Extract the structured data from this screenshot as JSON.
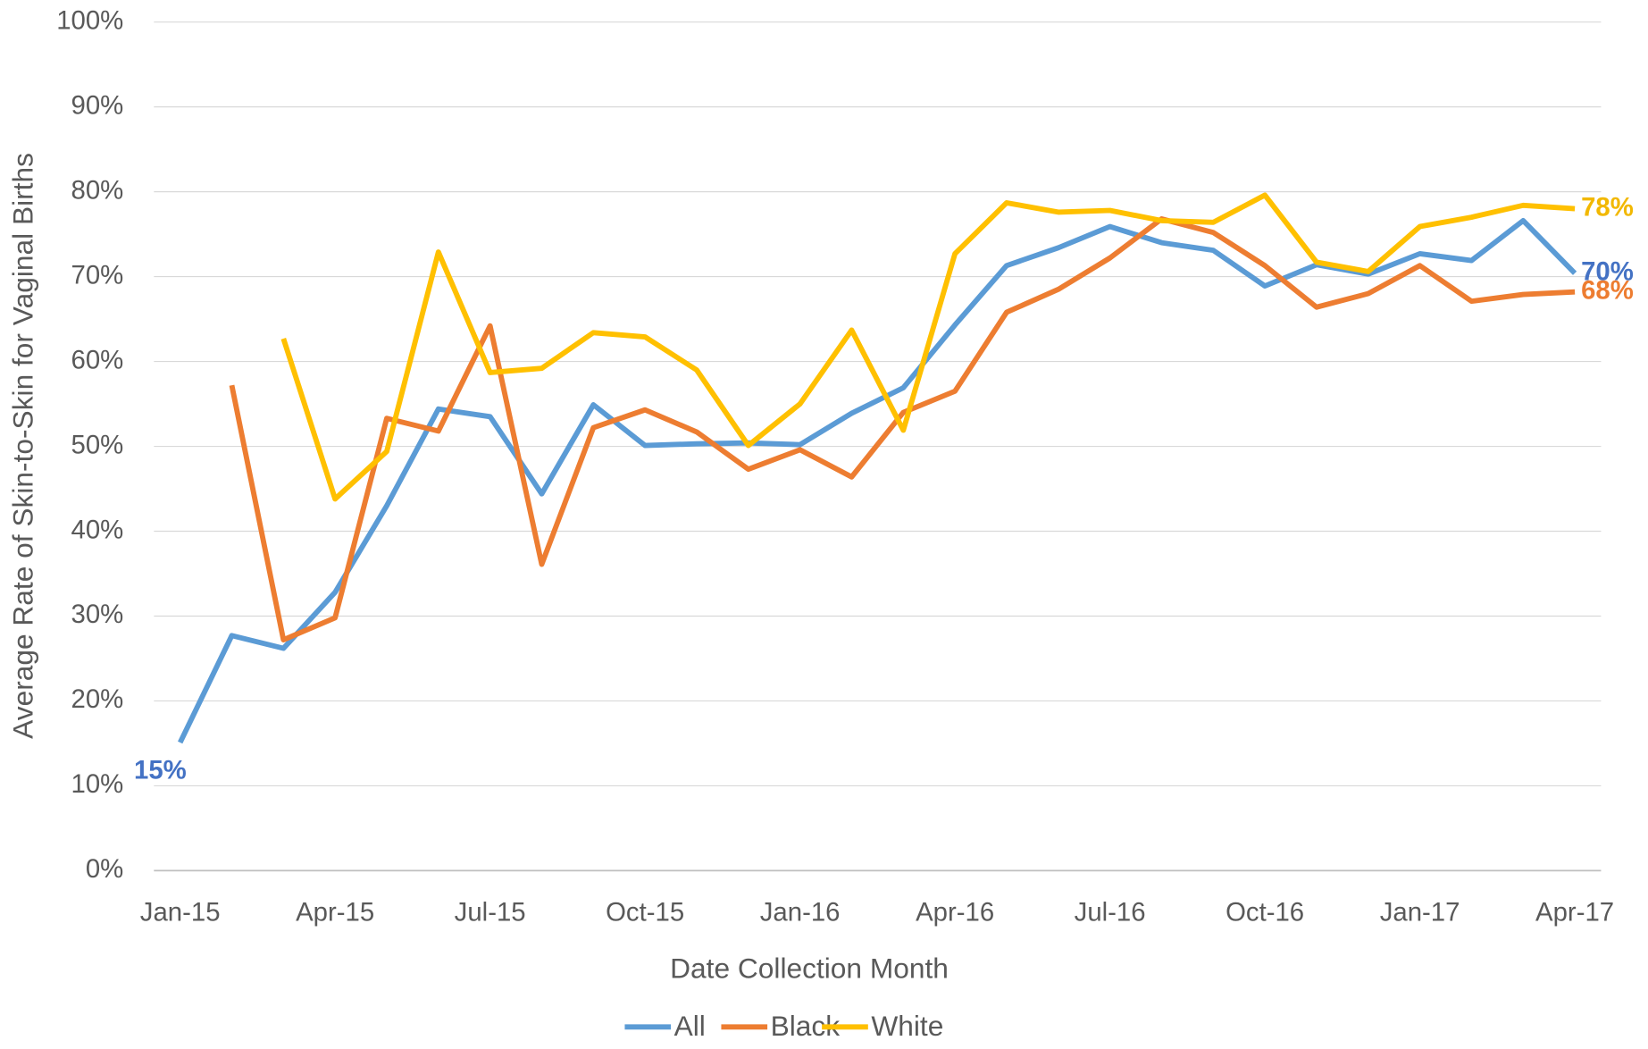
{
  "chart_data": {
    "type": "line",
    "x_label": "Date Collection Month",
    "y_label": "Average Rate of Skin-to-Skin for Vaginal Births",
    "categories": [
      "Jan-15",
      null,
      null,
      "Apr-15",
      null,
      null,
      "Jul-15",
      null,
      null,
      "Oct-15",
      null,
      null,
      "Jan-16",
      null,
      null,
      "Apr-16",
      null,
      null,
      "Jul-16",
      null,
      null,
      "Oct-16",
      null,
      null,
      "Jan-17",
      null,
      null,
      "Apr-17"
    ],
    "ylim": [
      0,
      100
    ],
    "yticks": [
      {
        "value": 0,
        "label": "0%"
      },
      {
        "value": 10,
        "label": "10%"
      },
      {
        "value": 20,
        "label": "20%"
      },
      {
        "value": 30,
        "label": "30%"
      },
      {
        "value": 40,
        "label": "40%"
      },
      {
        "value": 50,
        "label": "50%"
      },
      {
        "value": 60,
        "label": "60%"
      },
      {
        "value": 70,
        "label": "70%"
      },
      {
        "value": 80,
        "label": "80%"
      },
      {
        "value": 90,
        "label": "90%"
      },
      {
        "value": 100,
        "label": "100%"
      }
    ],
    "grid": true,
    "legend": "bottom",
    "series": [
      {
        "name": "All",
        "color": "#5b9bd5",
        "label_color": "#4472c4",
        "values": [
          15.1,
          27.7,
          26.2,
          32.8,
          43,
          54.4,
          53.5,
          44.4,
          54.9,
          50.1,
          50.3,
          50.4,
          50.2,
          53.9,
          56.9,
          64.3,
          71.3,
          73.4,
          75.9,
          74,
          73.1,
          68.9,
          71.4,
          70.3,
          72.7,
          71.9,
          76.6,
          70.4
        ],
        "value_labels": [
          "15%",
          null,
          null,
          null,
          null,
          null,
          null,
          null,
          null,
          null,
          null,
          null,
          null,
          null,
          null,
          null,
          null,
          null,
          null,
          null,
          null,
          null,
          null,
          null,
          null,
          null,
          null,
          "70%"
        ]
      },
      {
        "name": "Black",
        "color": "#ed7d31",
        "label_color": "#ed7d31",
        "values": [
          null,
          57.2,
          27.2,
          29.8,
          53.3,
          51.8,
          64.2,
          36.1,
          52.2,
          54.3,
          51.7,
          47.3,
          49.6,
          46.4,
          54,
          56.5,
          65.8,
          68.5,
          72.2,
          76.8,
          75.2,
          71.3,
          66.4,
          68,
          71.3,
          67.1,
          67.9,
          68.2
        ],
        "value_labels": [
          null,
          null,
          null,
          null,
          null,
          null,
          null,
          null,
          null,
          null,
          null,
          null,
          null,
          null,
          null,
          null,
          null,
          null,
          null,
          null,
          null,
          null,
          null,
          null,
          null,
          null,
          null,
          "68%"
        ]
      },
      {
        "name": "White",
        "color": "#ffc000",
        "label_color": "#f2b800",
        "values": [
          null,
          null,
          62.7,
          43.8,
          49.4,
          72.9,
          58.7,
          59.2,
          63.4,
          62.9,
          59,
          50.1,
          55,
          63.7,
          51.9,
          72.7,
          78.7,
          77.6,
          77.8,
          76.6,
          76.4,
          79.6,
          71.7,
          70.6,
          75.9,
          77,
          78.4,
          78
        ],
        "value_labels": [
          null,
          null,
          null,
          null,
          null,
          null,
          null,
          null,
          null,
          null,
          null,
          null,
          null,
          null,
          null,
          null,
          null,
          null,
          null,
          null,
          null,
          null,
          null,
          null,
          null,
          null,
          null,
          "78%"
        ]
      }
    ]
  }
}
